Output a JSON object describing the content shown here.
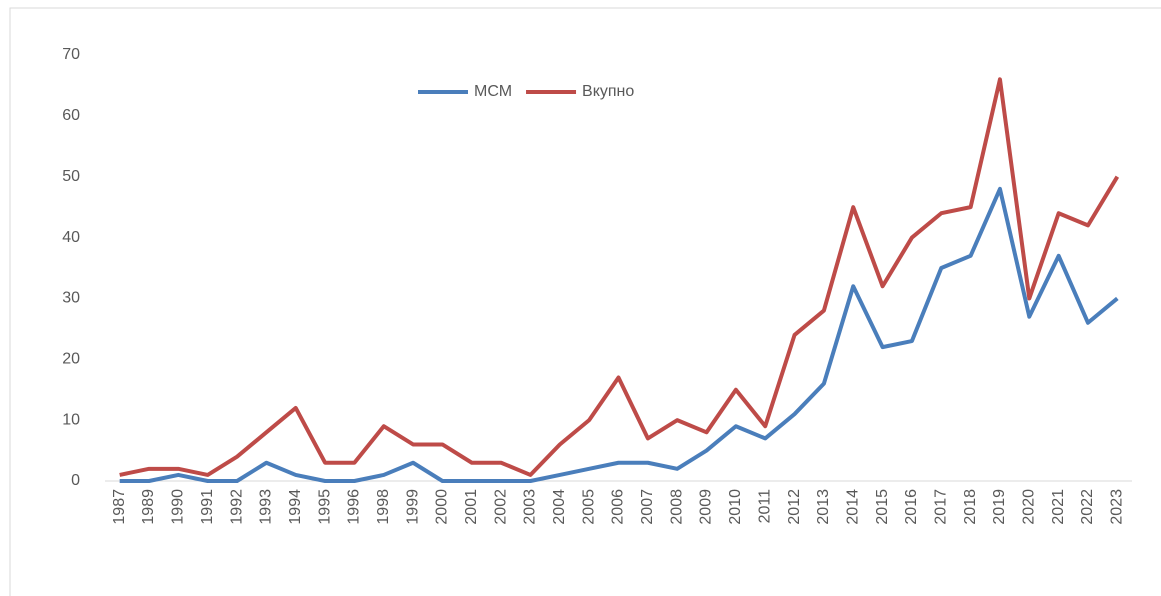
{
  "chart_data": {
    "type": "line",
    "categories": [
      "1987",
      "1989",
      "1990",
      "1991",
      "1992",
      "1993",
      "1994",
      "1995",
      "1996",
      "1998",
      "1999",
      "2000",
      "2001",
      "2002",
      "2003",
      "2004",
      "2005",
      "2006",
      "2007",
      "2008",
      "2009",
      "2010",
      "2011",
      "2012",
      "2013",
      "2014",
      "2015",
      "2016",
      "2017",
      "2018",
      "2019",
      "2020",
      "2021",
      "2022",
      "2023"
    ],
    "series": [
      {
        "name": "МСМ",
        "color": "#4a7ebb",
        "values": [
          0,
          0,
          1,
          0,
          0,
          3,
          1,
          0,
          0,
          1,
          3,
          0,
          0,
          0,
          0,
          1,
          2,
          3,
          3,
          2,
          5,
          9,
          7,
          11,
          16,
          32,
          22,
          23,
          35,
          37,
          48,
          27,
          37,
          26,
          30
        ]
      },
      {
        "name": "Вкупно",
        "color": "#be4b48",
        "values": [
          1,
          2,
          2,
          1,
          4,
          8,
          12,
          3,
          3,
          9,
          6,
          6,
          3,
          3,
          1,
          6,
          10,
          17,
          7,
          10,
          8,
          15,
          9,
          24,
          28,
          45,
          32,
          40,
          44,
          45,
          66,
          30,
          44,
          42,
          50
        ]
      }
    ],
    "ylim": [
      0,
      70
    ],
    "yticks": [
      0,
      10,
      20,
      30,
      40,
      50,
      60,
      70
    ],
    "grid": false,
    "legend": "top"
  }
}
